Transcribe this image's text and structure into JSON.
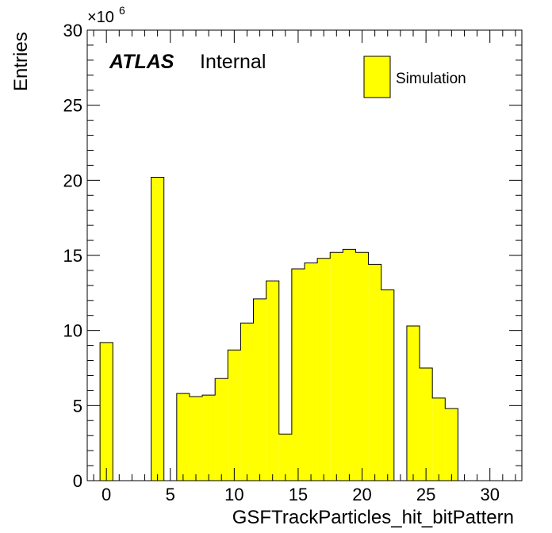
{
  "chart_data": {
    "type": "bar",
    "histogram": true,
    "xlabel": "GSFTrackParticles_hit_bitPattern",
    "ylabel": "Entries",
    "y_multiplier": "×10",
    "y_multiplier_exponent": "6",
    "xlim": [
      -1.5,
      32.5
    ],
    "ylim": [
      0,
      30
    ],
    "x_ticks": [
      0,
      5,
      10,
      15,
      20,
      25,
      30
    ],
    "y_ticks": [
      0,
      5,
      10,
      15,
      20,
      25,
      30
    ],
    "bin_width": 1,
    "bins": [
      {
        "x": 0,
        "value": 9.2
      },
      {
        "x": 1,
        "value": 0
      },
      {
        "x": 2,
        "value": 0
      },
      {
        "x": 3,
        "value": 0
      },
      {
        "x": 4,
        "value": 20.2
      },
      {
        "x": 5,
        "value": 0
      },
      {
        "x": 6,
        "value": 5.8
      },
      {
        "x": 7,
        "value": 5.6
      },
      {
        "x": 8,
        "value": 5.7
      },
      {
        "x": 9,
        "value": 6.8
      },
      {
        "x": 10,
        "value": 8.7
      },
      {
        "x": 11,
        "value": 10.5
      },
      {
        "x": 12,
        "value": 12.1
      },
      {
        "x": 13,
        "value": 13.3
      },
      {
        "x": 14,
        "value": 3.1
      },
      {
        "x": 15,
        "value": 14.1
      },
      {
        "x": 16,
        "value": 14.5
      },
      {
        "x": 17,
        "value": 14.8
      },
      {
        "x": 18,
        "value": 15.2
      },
      {
        "x": 19,
        "value": 15.4
      },
      {
        "x": 20,
        "value": 15.2
      },
      {
        "x": 21,
        "value": 14.4
      },
      {
        "x": 22,
        "value": 12.7
      },
      {
        "x": 23,
        "value": 0
      },
      {
        "x": 24,
        "value": 10.3
      },
      {
        "x": 25,
        "value": 7.5
      },
      {
        "x": 26,
        "value": 5.5
      },
      {
        "x": 27,
        "value": 4.8
      },
      {
        "x": 28,
        "value": 0
      },
      {
        "x": 29,
        "value": 0
      },
      {
        "x": 30,
        "value": 0
      },
      {
        "x": 31,
        "value": 0
      }
    ],
    "series": [
      {
        "name": "Simulation",
        "color": "#ffff00"
      }
    ],
    "legend_position": "top-right",
    "atlas_label": "ATLAS",
    "atlas_status": "Internal",
    "grid": false
  }
}
